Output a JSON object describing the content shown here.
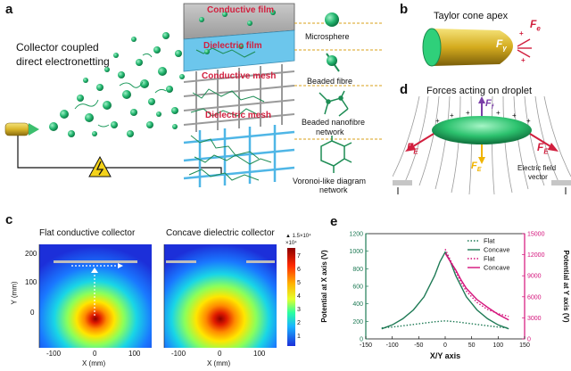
{
  "panel_a": {
    "label": "a",
    "title_line1": "Collector coupled",
    "title_line2": "direct electronetting",
    "layers": {
      "conductive_film": "Conductive film",
      "dielectric_film": "Dielectric film",
      "conductive_mesh": "Conductive mesh",
      "dielectric_mesh": "Dielectric mesh"
    },
    "legend": {
      "microsphere": "Microsphere",
      "beaded_fibre": "Beaded fibre",
      "beaded_network_1": "Beaded nanofibre",
      "beaded_network_2": "network",
      "voronoi_1": "Voronoi-like diagram",
      "voronoi_2": "network"
    }
  },
  "panel_b": {
    "label": "b",
    "title": "Taylor cone apex",
    "fe": "F",
    "fe_sub": "e",
    "fy": "F",
    "fy_sub": "γ"
  },
  "panel_d": {
    "label": "d",
    "title": "Forces acting on droplet",
    "ff": "F",
    "ff_sub": "f",
    "fe_left": "F",
    "fe_left_sub": "E",
    "fe_right": "F",
    "fe_right_sub": "E",
    "fg": "F",
    "fg_sub": "E",
    "field_note_1": "Electric field",
    "field_note_2": "vector"
  },
  "panel_c": {
    "label": "c",
    "title_left": "Flat conductive collector",
    "title_right": "Concave dielectric collector",
    "ylabel": "Y (mm)",
    "xlabel": "X (mm)",
    "yticks": [
      "200",
      "100",
      "0"
    ],
    "xticks": [
      "-100",
      "0",
      "100"
    ],
    "colorbar_top": "▲ 1.5×10⁴",
    "colorbar_exp": "×10⁴",
    "colorbar_ticks": [
      "7",
      "6",
      "5",
      "4",
      "3",
      "2",
      "1"
    ]
  },
  "panel_e": {
    "label": "e",
    "chart_data": {
      "type": "line",
      "xlabel": "X/Y axis",
      "ylabel_left": "Potential at X axis (V)",
      "ylabel_right": "Potential at Y axis (V)",
      "xlim": [
        -150,
        150
      ],
      "ylim_left": [
        0,
        1200
      ],
      "ylim_right": [
        0,
        15000
      ],
      "xticks": [
        "-150",
        "-100",
        "-50",
        "0",
        "50",
        "100",
        "150"
      ],
      "yticks_left": [
        "0",
        "200",
        "400",
        "600",
        "800",
        "1000",
        "1200"
      ],
      "yticks_right": [
        "0",
        "3000",
        "6000",
        "9000",
        "12000",
        "15000"
      ],
      "colors": {
        "left": "#1e7a55",
        "right": "#d4117a"
      },
      "series": [
        {
          "name": "Flat",
          "axis": "left",
          "style": "dotted",
          "x": [
            -120,
            -100,
            -80,
            -60,
            -40,
            -20,
            0,
            20,
            40,
            60,
            80,
            100,
            120
          ],
          "y": [
            125,
            135,
            150,
            165,
            180,
            195,
            205,
            195,
            180,
            165,
            150,
            135,
            125
          ]
        },
        {
          "name": "Concave",
          "axis": "left",
          "style": "solid",
          "x": [
            -120,
            -100,
            -80,
            -60,
            -40,
            -20,
            -10,
            0,
            10,
            20,
            40,
            60,
            80,
            100,
            120
          ],
          "y": [
            115,
            160,
            230,
            330,
            480,
            720,
            880,
            990,
            880,
            720,
            480,
            330,
            230,
            160,
            115
          ]
        },
        {
          "name": "Flat",
          "axis": "right",
          "style": "dotted",
          "x": [
            0,
            10,
            20,
            30,
            40,
            60,
            80,
            100,
            120
          ],
          "y": [
            12800,
            11200,
            9600,
            8000,
            6800,
            5200,
            4200,
            3600,
            3200
          ]
        },
        {
          "name": "Concave",
          "axis": "right",
          "style": "solid",
          "x": [
            0,
            10,
            20,
            30,
            40,
            60,
            80,
            100,
            120
          ],
          "y": [
            12200,
            11000,
            9800,
            8400,
            7200,
            5600,
            4500,
            3500,
            2700
          ]
        }
      ]
    }
  }
}
